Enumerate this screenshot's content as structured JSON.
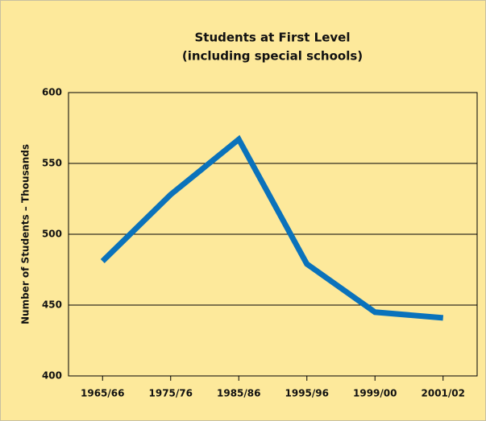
{
  "chart_data": {
    "type": "line",
    "title": "Students at First Level",
    "subtitle": "(including special schools)",
    "y_label": "Number of Students – Thousands",
    "categories": [
      "1965/66",
      "1975/76",
      "1985/86",
      "1995/96",
      "1999/00",
      "2001/02"
    ],
    "series": [
      {
        "name": "Students",
        "color": "#0a72bb",
        "values": [
          481,
          528,
          567,
          479,
          445,
          441
        ]
      }
    ],
    "ylim": [
      400,
      600
    ],
    "yticks": [
      400,
      450,
      500,
      550,
      600
    ],
    "grid": true
  }
}
